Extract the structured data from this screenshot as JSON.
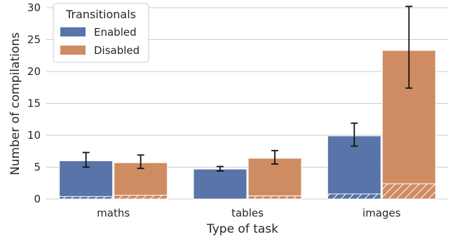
{
  "chart_data": {
    "type": "bar",
    "categories": [
      "maths",
      "tables",
      "images"
    ],
    "xlabel": "Type of task",
    "ylabel": "Number of compilations",
    "ylim": [
      0,
      30
    ],
    "yticks": [
      0,
      5,
      10,
      15,
      20,
      25,
      30
    ],
    "grid": "horizontal",
    "legend": {
      "title": "Transitionals",
      "placement": "top-left"
    },
    "series": [
      {
        "name": "Enabled",
        "color": "#5874a8",
        "values": [
          6.0,
          4.7,
          9.9
        ],
        "error_low": [
          5.0,
          4.4,
          8.3
        ],
        "error_high": [
          7.3,
          5.1,
          11.9
        ],
        "hatched_values": [
          0.4,
          0.0,
          0.8
        ]
      },
      {
        "name": "Disabled",
        "color": "#cf8c63",
        "values": [
          5.7,
          6.4,
          23.3
        ],
        "error_low": [
          4.8,
          5.5,
          17.4
        ],
        "error_high": [
          6.9,
          7.6,
          30.2
        ],
        "hatched_values": [
          0.6,
          0.5,
          2.4
        ]
      }
    ]
  }
}
